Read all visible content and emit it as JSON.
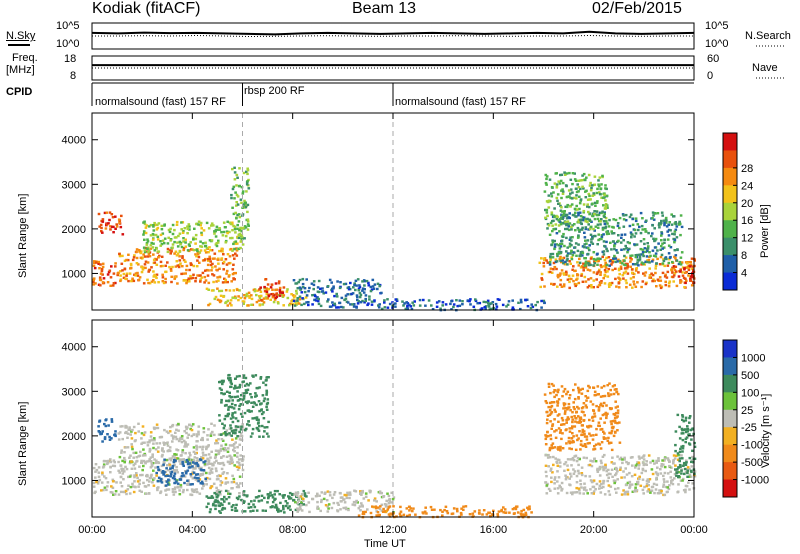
{
  "header": {
    "station": "Kodiak (fitACF)",
    "beam": "Beam 13",
    "date": "02/Feb/2015"
  },
  "status_panels": {
    "nsky_label": "N.Sky",
    "nsky_ticks": [
      "10^5",
      "10^0"
    ],
    "nsearch_label": "N.Search",
    "nsearch_ticks": [
      "10^5",
      "10^0"
    ],
    "freq_label": "Freq.",
    "freq_unit": "[MHz]",
    "freq_ticks": [
      "18",
      "8"
    ],
    "nave_label": "Nave",
    "nave_ticks": [
      "60",
      "0"
    ],
    "cpid_label": "CPID"
  },
  "cpid_segments": [
    {
      "label": "normalsound (fast) 157 RF",
      "start_hour": 0,
      "end_hour": 6
    },
    {
      "label": "rbsp 200 RF",
      "start_hour": 6,
      "end_hour": 12
    },
    {
      "label": "normalsound (fast) 157 RF",
      "start_hour": 12,
      "end_hour": 24
    }
  ],
  "colors": {
    "power": [
      "#0a2bd6",
      "#1f5fa8",
      "#3b8f6a",
      "#4fb24a",
      "#a9d33a",
      "#f2c21a",
      "#f58a10",
      "#e8500c",
      "#d41010"
    ],
    "velocity": [
      "#1a33c8",
      "#2a6aa8",
      "#3d8a5c",
      "#6cc23a",
      "#bdbdb5",
      "#f2b022",
      "#f08a1a",
      "#e85a12",
      "#d41010"
    ]
  },
  "chart_data": [
    {
      "type": "heatmap",
      "title": "",
      "xlabel": "",
      "ylabel": "Slant Range [km]",
      "xlim": [
        0,
        24
      ],
      "ylim": [
        180,
        4600
      ],
      "x_ticks": [
        "00:00",
        "04:00",
        "08:00",
        "12:00",
        "16:00",
        "20:00",
        "00:00"
      ],
      "y_ticks": [
        1000,
        2000,
        3000,
        4000
      ],
      "colorbar": {
        "label": "Power [dB]",
        "ticks": [
          4,
          8,
          12,
          16,
          20,
          24,
          28
        ]
      },
      "regions": [
        {
          "t": [
            0.0,
            1.0
          ],
          "r": [
            700,
            1300
          ],
          "value": 24
        },
        {
          "t": [
            0.2,
            1.2
          ],
          "r": [
            1900,
            2400
          ],
          "value": 26
        },
        {
          "t": [
            1.0,
            5.8
          ],
          "r": [
            800,
            1600
          ],
          "value": 22
        },
        {
          "t": [
            2.0,
            6.0
          ],
          "r": [
            1500,
            2200
          ],
          "value": 14
        },
        {
          "t": [
            5.5,
            6.2
          ],
          "r": [
            1800,
            3400
          ],
          "value": 12
        },
        {
          "t": [
            4.5,
            8.5
          ],
          "r": [
            300,
            700
          ],
          "value": 18
        },
        {
          "t": [
            6.6,
            7.6
          ],
          "r": [
            400,
            900
          ],
          "value": 26
        },
        {
          "t": [
            8.0,
            11.5
          ],
          "r": [
            250,
            900
          ],
          "value": 6
        },
        {
          "t": [
            11.5,
            18.0
          ],
          "r": [
            200,
            450
          ],
          "value": 5
        },
        {
          "t": [
            17.8,
            24.0
          ],
          "r": [
            700,
            1400
          ],
          "value": 22
        },
        {
          "t": [
            18.2,
            23.5
          ],
          "r": [
            1200,
            2400
          ],
          "value": 9
        },
        {
          "t": [
            18.0,
            20.5
          ],
          "r": [
            2000,
            3300
          ],
          "value": 12
        },
        {
          "t": [
            23.0,
            24.0
          ],
          "r": [
            800,
            1200
          ],
          "value": 27
        }
      ]
    },
    {
      "type": "heatmap",
      "title": "",
      "xlabel": "Time UT",
      "ylabel": "Slant Range [km]",
      "xlim": [
        0,
        24
      ],
      "ylim": [
        180,
        4600
      ],
      "x_ticks": [
        "00:00",
        "04:00",
        "08:00",
        "12:00",
        "16:00",
        "20:00",
        "00:00"
      ],
      "y_ticks": [
        1000,
        2000,
        3000,
        4000
      ],
      "colorbar": {
        "label": "Velocity [m s⁻¹]",
        "ticks": [
          1000,
          500,
          100,
          25,
          -25,
          -100,
          -500,
          -1000
        ]
      },
      "regions": [
        {
          "t": [
            0.0,
            6.0
          ],
          "r": [
            700,
            1500
          ],
          "value": 0
        },
        {
          "t": [
            1.0,
            6.0
          ],
          "r": [
            1400,
            2300
          ],
          "value": 0
        },
        {
          "t": [
            0.2,
            0.9
          ],
          "r": [
            1900,
            2400
          ],
          "value": 800
        },
        {
          "t": [
            2.5,
            4.5
          ],
          "r": [
            900,
            1500
          ],
          "value": 900
        },
        {
          "t": [
            5.0,
            7.0
          ],
          "r": [
            2000,
            3400
          ],
          "value": 150
        },
        {
          "t": [
            4.5,
            8.5
          ],
          "r": [
            300,
            800
          ],
          "value": 200
        },
        {
          "t": [
            8.0,
            12.0
          ],
          "r": [
            300,
            800
          ],
          "value": 0
        },
        {
          "t": [
            10.5,
            17.5
          ],
          "r": [
            200,
            450
          ],
          "value": -300
        },
        {
          "t": [
            18.0,
            24.0
          ],
          "r": [
            700,
            1600
          ],
          "value": 0
        },
        {
          "t": [
            18.0,
            21.0
          ],
          "r": [
            1700,
            3200
          ],
          "value": -300
        },
        {
          "t": [
            23.2,
            24.0
          ],
          "r": [
            1100,
            2500
          ],
          "value": 150
        }
      ]
    }
  ],
  "status_series": {
    "nsky": [
      0.62,
      0.6,
      0.63,
      0.61,
      0.62,
      0.6,
      0.58,
      0.56,
      0.6,
      0.62,
      0.6,
      0.58,
      0.6,
      0.62,
      0.6,
      0.58,
      0.6,
      0.62,
      0.6,
      0.66,
      0.6,
      0.58,
      0.6,
      0.62
    ],
    "nsearch": [
      0.5,
      0.5,
      0.51,
      0.5,
      0.52,
      0.5,
      0.48,
      0.49,
      0.5,
      0.51,
      0.5,
      0.49,
      0.5,
      0.5,
      0.51,
      0.5,
      0.49,
      0.5,
      0.5,
      0.52,
      0.5,
      0.49,
      0.5,
      0.5
    ],
    "freq": [
      0.62,
      0.62,
      0.62,
      0.62,
      0.62,
      0.62,
      0.62,
      0.62,
      0.62,
      0.62,
      0.62,
      0.62,
      0.62,
      0.62,
      0.62,
      0.62,
      0.62,
      0.62,
      0.62,
      0.62,
      0.62,
      0.62,
      0.62,
      0.62
    ],
    "nave": [
      0.5,
      0.5,
      0.5,
      0.5,
      0.5,
      0.5,
      0.5,
      0.5,
      0.5,
      0.5,
      0.5,
      0.5,
      0.5,
      0.5,
      0.5,
      0.5,
      0.5,
      0.5,
      0.5,
      0.5,
      0.5,
      0.5,
      0.5,
      0.5
    ]
  }
}
